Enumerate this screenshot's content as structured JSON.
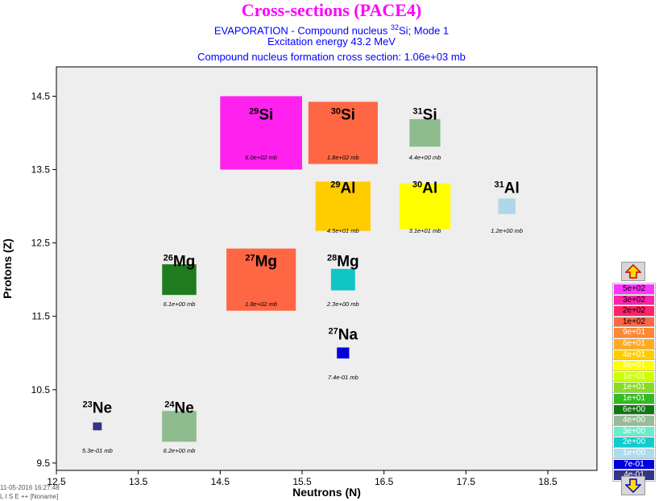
{
  "title": "Cross-sections (PACE4)",
  "subtitle": {
    "pre": "EVAPORATION  -  Compound nucleus ",
    "mass": "32",
    "element": "Si;",
    "post": "   Mode 1"
  },
  "excitation": "Excitation energy 43.2 MeV",
  "formation": "Compound nucleus formation cross section: 1.06e+03 mb",
  "footer": {
    "timestamp": "11-05-2016  16:27:48",
    "app": "L I S E ++  [Noname]"
  },
  "legend": {
    "up_icon": "arrow-up-icon",
    "down_icon": "arrow-down-icon",
    "items": [
      {
        "label": "5e+02",
        "color": "#ff33ff",
        "text": "#000000"
      },
      {
        "label": "3e+02",
        "color": "#ff22aa",
        "text": "#000000"
      },
      {
        "label": "2e+02",
        "color": "#ff2266",
        "text": "#000000"
      },
      {
        "label": "1e+02",
        "color": "#ff6644",
        "text": "#000000"
      },
      {
        "label": "9e+01",
        "color": "#ff8833",
        "text": "#ffffff"
      },
      {
        "label": "6e+01",
        "color": "#ffaa22",
        "text": "#ffffff"
      },
      {
        "label": "4e+01",
        "color": "#ffcc00",
        "text": "#ffffff"
      },
      {
        "label": "2e+01",
        "color": "#ffff00",
        "text": "#ffffff"
      },
      {
        "label": "1e+01",
        "color": "#ccff00",
        "text": "#ffffff"
      },
      {
        "label": "1e+01",
        "color": "#88dd22",
        "text": "#ffffff"
      },
      {
        "label": "1e+01",
        "color": "#33bb22",
        "text": "#ffffff"
      },
      {
        "label": "6e+00",
        "color": "#117711",
        "text": "#ffffff"
      },
      {
        "label": "4e+00",
        "color": "#99bb99",
        "text": "#ffffff"
      },
      {
        "label": "3e+00",
        "color": "#66eecc",
        "text": "#ffffff"
      },
      {
        "label": "2e+00",
        "color": "#11cccc",
        "text": "#ffffff"
      },
      {
        "label": "1e+00",
        "color": "#aaddee",
        "text": "#ffffff"
      },
      {
        "label": "7e-01",
        "color": "#0000dd",
        "text": "#ffffff"
      },
      {
        "label": "4e-01",
        "color": "#333388",
        "text": "#ffffff"
      }
    ]
  },
  "chart_data": {
    "type": "heatmap",
    "xlabel": "Neutrons (N)",
    "ylabel": "Protons (Z)",
    "xlim": [
      12.5,
      19.1
    ],
    "ylim": [
      9.4,
      14.9
    ],
    "xticks": [
      "12.5",
      "13.5",
      "14.5",
      "15.5",
      "16.5",
      "17.5",
      "18.5"
    ],
    "yticks": [
      "9.5",
      "10.5",
      "11.5",
      "12.5",
      "13.5",
      "14.5"
    ],
    "grid": false,
    "nuclei": [
      {
        "mass": "29",
        "element": "Si",
        "N": 15,
        "Z": 14,
        "value": "6.0e+02 mb",
        "sigma_mb": 600,
        "color": "#ff22ee"
      },
      {
        "mass": "30",
        "element": "Si",
        "N": 16,
        "Z": 14,
        "value": "1.8e+02 mb",
        "sigma_mb": 180,
        "color": "#ff6644"
      },
      {
        "mass": "31",
        "element": "Si",
        "N": 17,
        "Z": 14,
        "value": "4.4e+00 mb",
        "sigma_mb": 4.4,
        "color": "#8fbc8f"
      },
      {
        "mass": "29",
        "element": "Al",
        "N": 16,
        "Z": 13,
        "value": "4.5e+01 mb",
        "sigma_mb": 45,
        "color": "#ffcc00"
      },
      {
        "mass": "30",
        "element": "Al",
        "N": 17,
        "Z": 13,
        "value": "3.1e+01 mb",
        "sigma_mb": 31,
        "color": "#ffff00"
      },
      {
        "mass": "31",
        "element": "Al",
        "N": 18,
        "Z": 13,
        "value": "1.2e+00 mb",
        "sigma_mb": 1.2,
        "color": "#add8e6"
      },
      {
        "mass": "26",
        "element": "Mg",
        "N": 14,
        "Z": 12,
        "value": "6.1e+00 mb",
        "sigma_mb": 6.1,
        "color": "#1e7b1e"
      },
      {
        "mass": "27",
        "element": "Mg",
        "N": 15,
        "Z": 12,
        "value": "1.8e+02 mb",
        "sigma_mb": 180,
        "color": "#ff6644"
      },
      {
        "mass": "28",
        "element": "Mg",
        "N": 16,
        "Z": 12,
        "value": "2.3e+00 mb",
        "sigma_mb": 2.3,
        "color": "#11c5c5"
      },
      {
        "mass": "27",
        "element": "Na",
        "N": 16,
        "Z": 11,
        "value": "7.4e-01 mb",
        "sigma_mb": 0.74,
        "color": "#0000dd"
      },
      {
        "mass": "23",
        "element": "Ne",
        "N": 13,
        "Z": 10,
        "value": "5.3e-01 mb",
        "sigma_mb": 0.53,
        "color": "#333388"
      },
      {
        "mass": "24",
        "element": "Ne",
        "N": 14,
        "Z": 10,
        "value": "6.2e+00 mb",
        "sigma_mb": 6.2,
        "color": "#8fbc8f"
      }
    ]
  }
}
